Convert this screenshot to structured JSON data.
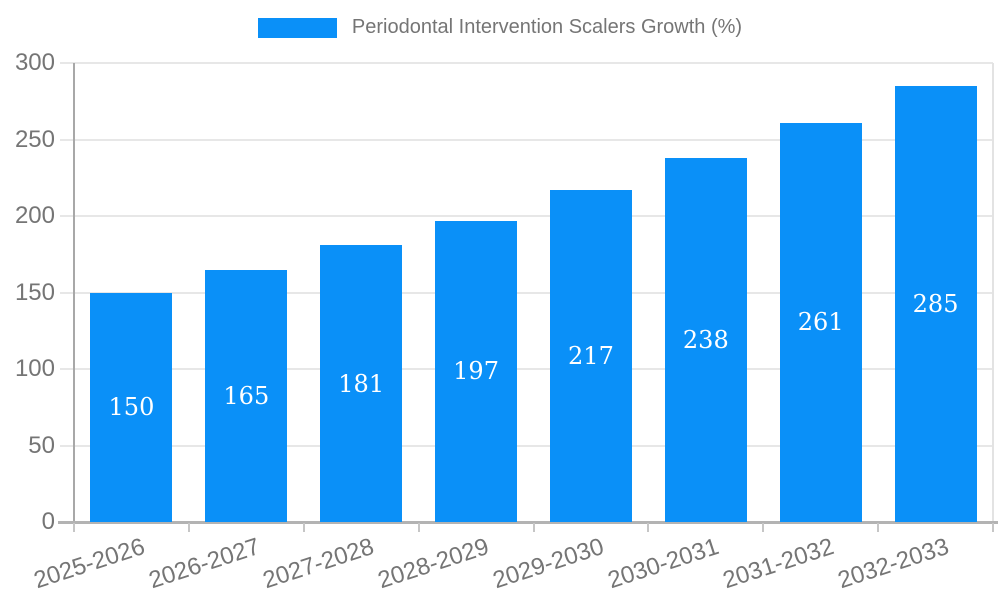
{
  "chart_data": {
    "type": "bar",
    "title": "Periodontal Intervention Scalers Growth (%)",
    "categories": [
      "2025-2026",
      "2026-2027",
      "2027-2028",
      "2028-2029",
      "2029-2030",
      "2030-2031",
      "2031-2032",
      "2032-2033"
    ],
    "values": [
      150,
      165,
      181,
      197,
      217,
      238,
      261,
      285
    ],
    "yticks": [
      0,
      50,
      100,
      150,
      200,
      250,
      300
    ],
    "ylim": [
      0,
      300
    ],
    "xlabel": "",
    "ylabel": "",
    "grid": true,
    "legend_position": "top-center",
    "bar_color": "#0a90f8",
    "bar_label_color": "#ffffff",
    "axis_text_color": "#757575"
  },
  "legend": {
    "label": "Periodontal Intervention Scalers Growth (%)",
    "swatch_color": "#0a90f8"
  }
}
